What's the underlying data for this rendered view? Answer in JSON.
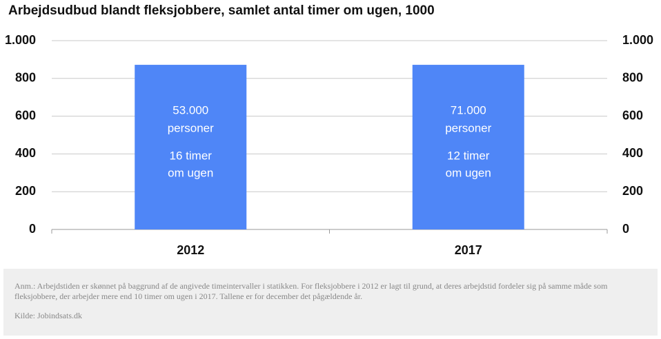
{
  "chart_data": {
    "type": "bar",
    "title": "Arbejdsudbud blandt fleksjobbere, samlet antal timer om ugen, 1000",
    "categories": [
      "2012",
      "2017"
    ],
    "values": [
      872,
      872
    ],
    "bar_labels": [
      [
        "53.000",
        "personer",
        "16 timer",
        "om ugen"
      ],
      [
        "71.000",
        "personer",
        "12 timer",
        "om ugen"
      ]
    ],
    "color": "#4f86f7",
    "ylim": [
      0,
      1000
    ],
    "yticks": [
      0,
      200,
      400,
      600,
      800,
      {
        "value": 1000,
        "label": "1.000"
      }
    ],
    "y2lim": [
      0,
      1000
    ],
    "y2ticks": [
      0,
      200,
      400,
      600,
      800,
      {
        "value": 1000,
        "label": "1.000"
      }
    ],
    "grid": true,
    "note": "Anm.: Arbejdstiden er skønnet på baggrund af de angivede timeintervaller i statikken. For fleksjobbere i 2012 er lagt til grund, at deres arbejdstid fordeler sig på samme måde som fleksjobbere, der arbejder mere end 10 timer om ugen i 2017. Tallene er for december det pågældende år.",
    "source": "Kilde: Jobindsats.dk"
  }
}
